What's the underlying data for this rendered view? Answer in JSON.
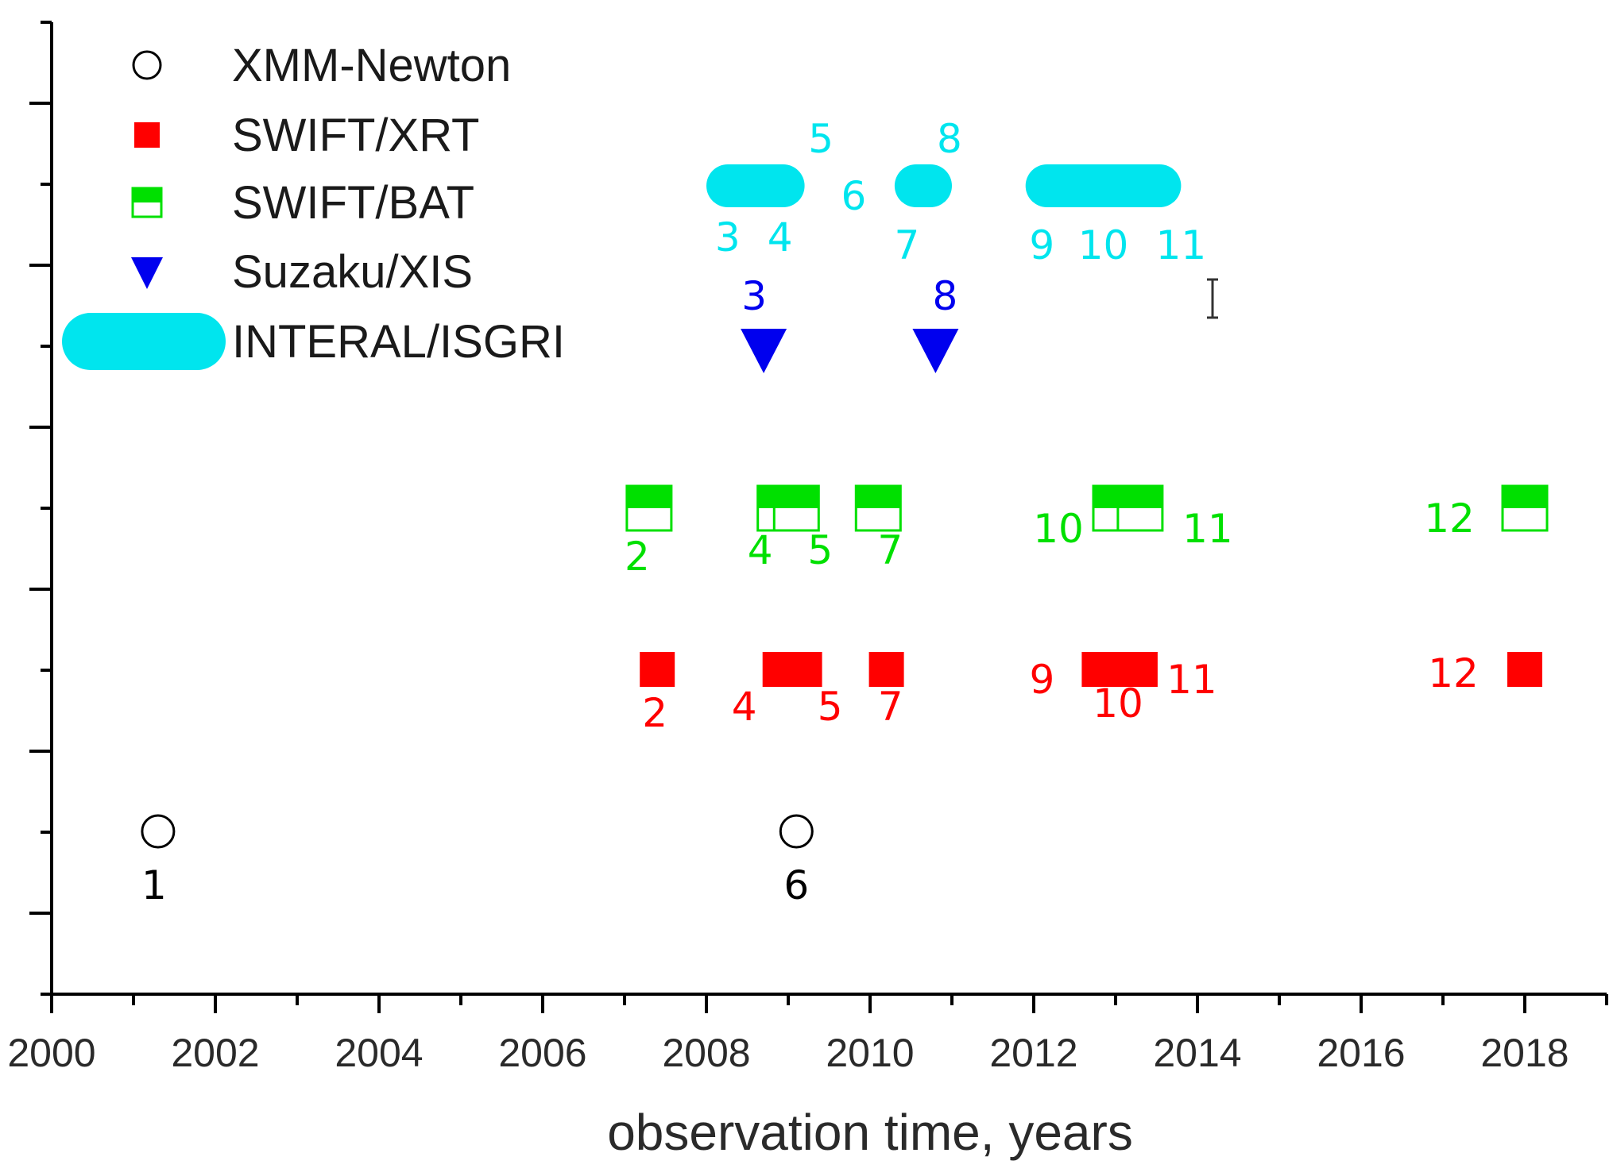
{
  "chart_data": {
    "type": "scatter",
    "title": "",
    "xlabel": "observation time, years",
    "ylabel": "",
    "xlim": [
      2000,
      2019
    ],
    "x_ticks": [
      "2000",
      "2002",
      "2004",
      "2006",
      "2008",
      "2010",
      "2012",
      "2014",
      "2016",
      "2018"
    ],
    "grid": false,
    "legend_position": "top-left",
    "series": [
      {
        "name": "XMM-Newton",
        "marker": "circle-open",
        "color": "#000000",
        "points": [
          {
            "x": 2001.3,
            "label": "1"
          },
          {
            "x": 2009.1,
            "label": "6"
          }
        ]
      },
      {
        "name": "SWIFT/XRT",
        "marker": "square-filled",
        "color": "#ff0000",
        "points": [
          {
            "x": 2007.4,
            "label": "2"
          },
          {
            "x": 2008.9,
            "label": "4"
          },
          {
            "x": 2009.2,
            "label": "5"
          },
          {
            "x": 2010.2,
            "label": "7"
          },
          {
            "x": 2012.8,
            "label": "9"
          },
          {
            "x": 2013.0,
            "label": "10"
          },
          {
            "x": 2013.3,
            "label": "11"
          },
          {
            "x": 2018.0,
            "label": "12"
          }
        ]
      },
      {
        "name": "SWIFT/BAT",
        "marker": "square-half",
        "color": "#00e000",
        "points": [
          {
            "x": 2007.3,
            "label": "2"
          },
          {
            "x": 2008.9,
            "label": "4"
          },
          {
            "x": 2009.1,
            "label": "5"
          },
          {
            "x": 2010.1,
            "label": "7"
          },
          {
            "x": 2013.0,
            "label": "10"
          },
          {
            "x": 2013.3,
            "label": "11"
          },
          {
            "x": 2018.0,
            "label": "12"
          }
        ]
      },
      {
        "name": "Suzaku/XIS",
        "marker": "triangle-down",
        "color": "#0000ee",
        "points": [
          {
            "x": 2008.7,
            "label": "3"
          },
          {
            "x": 2010.8,
            "label": "8"
          }
        ]
      },
      {
        "name": "INTERAL/ISGRI",
        "marker": "capsule",
        "color": "#00e5ee",
        "segments": [
          {
            "start": 2008.0,
            "end": 2009.2
          },
          {
            "start": 2010.3,
            "end": 2011.0
          },
          {
            "start": 2011.9,
            "end": 2013.8
          }
        ],
        "labels": [
          "3",
          "4",
          "5",
          "6",
          "7",
          "8",
          "9",
          "10",
          "11"
        ]
      }
    ]
  }
}
